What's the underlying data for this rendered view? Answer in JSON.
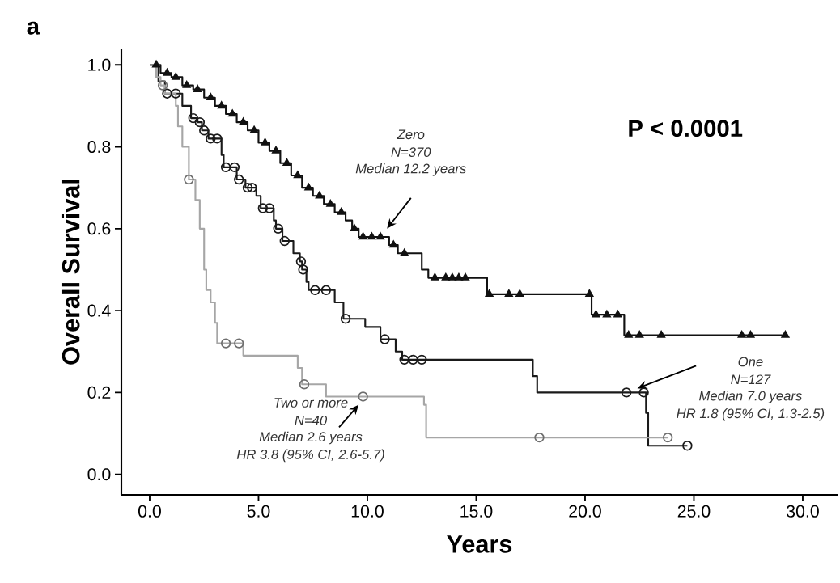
{
  "chart_data": {
    "type": "step",
    "title": "a",
    "xlabel": "Years",
    "ylabel": "Overall Survival",
    "xlim": [
      -1.3,
      31.6
    ],
    "ylim": [
      -0.05,
      1.04
    ],
    "xticks": [
      {
        "value": 0,
        "label": "0.0"
      },
      {
        "value": 5,
        "label": "5.0"
      },
      {
        "value": 10,
        "label": "10.0"
      },
      {
        "value": 15,
        "label": "15.0"
      },
      {
        "value": 20,
        "label": "20.0"
      },
      {
        "value": 25,
        "label": "25.0"
      },
      {
        "value": 30,
        "label": "30.0"
      }
    ],
    "yticks": [
      {
        "value": 0,
        "label": "0.0"
      },
      {
        "value": 0.2,
        "label": "0.2"
      },
      {
        "value": 0.4,
        "label": "0.4"
      },
      {
        "value": 0.6,
        "label": "0.6"
      },
      {
        "value": 0.8,
        "label": "0.8"
      },
      {
        "value": 1,
        "label": "1.0"
      }
    ],
    "series": [
      {
        "color": "#111111",
        "x": [
          0,
          0.5,
          1,
          1.5,
          2,
          2.5,
          3,
          3.5,
          4,
          4.5,
          5,
          5.5,
          6,
          6.5,
          7,
          7.5,
          8,
          8.5,
          9,
          9.3,
          9.6,
          11,
          11.4,
          12.5,
          12.8,
          15.5,
          20.3,
          21.8,
          29.2
        ],
        "values": [
          1.0,
          0.98,
          0.97,
          0.95,
          0.94,
          0.92,
          0.9,
          0.88,
          0.86,
          0.84,
          0.81,
          0.79,
          0.76,
          0.73,
          0.7,
          0.68,
          0.66,
          0.64,
          0.62,
          0.6,
          0.58,
          0.56,
          0.54,
          0.5,
          0.48,
          0.44,
          0.39,
          0.34,
          0.34
        ]
      },
      {
        "color": "#1a1a1a",
        "x": [
          0,
          0.4,
          0.7,
          1.5,
          1.9,
          2.2,
          2.4,
          2.7,
          3.3,
          3.4,
          4.0,
          4.4,
          4.9,
          5.1,
          5.7,
          5.8,
          6.1,
          6.6,
          6.9,
          7.0,
          7.2,
          7.3,
          8.5,
          8.9,
          9.9,
          10.6,
          11.3,
          11.6,
          17.6,
          17.8,
          22.8,
          22.9,
          24.7
        ],
        "values": [
          1.0,
          0.96,
          0.93,
          0.9,
          0.87,
          0.86,
          0.84,
          0.82,
          0.78,
          0.75,
          0.72,
          0.7,
          0.68,
          0.65,
          0.62,
          0.6,
          0.57,
          0.54,
          0.52,
          0.5,
          0.47,
          0.45,
          0.42,
          0.38,
          0.36,
          0.33,
          0.3,
          0.28,
          0.24,
          0.2,
          0.15,
          0.07,
          0.07
        ]
      },
      {
        "color": "#a6a6a6",
        "x": [
          0,
          0.3,
          0.5,
          0.7,
          1.2,
          1.3,
          1.5,
          1.8,
          2.1,
          2.3,
          2.5,
          2.6,
          2.8,
          3.0,
          3.1,
          4.3,
          6.8,
          7.0,
          8.1,
          12.6,
          12.7,
          23.8
        ],
        "values": [
          1.0,
          0.97,
          0.95,
          0.93,
          0.9,
          0.85,
          0.8,
          0.72,
          0.67,
          0.6,
          0.5,
          0.45,
          0.42,
          0.37,
          0.32,
          0.29,
          0.26,
          0.22,
          0.19,
          0.17,
          0.09,
          0.09
        ]
      },
      {
        "type": "scatter",
        "marker": "triangle",
        "color": "#111111",
        "x": [
          0.3,
          0.8,
          1.2,
          1.7,
          2.2,
          2.8,
          3.3,
          3.8,
          4.3,
          4.8,
          5.3,
          5.8,
          6.3,
          6.8,
          7.3,
          7.8,
          8.3,
          8.8,
          9.4,
          9.8,
          10.2,
          10.6,
          11.2,
          11.7,
          13.1,
          13.6,
          13.9,
          14.2,
          14.5,
          15.6,
          16.5,
          17,
          20.2,
          20.5,
          21,
          21.5,
          22,
          22.5,
          23.5,
          27.2,
          27.6,
          29.2
        ],
        "values": [
          1.0,
          0.98,
          0.97,
          0.95,
          0.94,
          0.92,
          0.9,
          0.88,
          0.86,
          0.84,
          0.81,
          0.79,
          0.76,
          0.73,
          0.7,
          0.68,
          0.66,
          0.64,
          0.6,
          0.58,
          0.58,
          0.58,
          0.56,
          0.54,
          0.48,
          0.48,
          0.48,
          0.48,
          0.48,
          0.44,
          0.44,
          0.44,
          0.44,
          0.39,
          0.39,
          0.39,
          0.34,
          0.34,
          0.34,
          0.34,
          0.34,
          0.34
        ]
      },
      {
        "type": "scatter",
        "marker": "circle",
        "color": "#1a1a1a",
        "x": [
          0.8,
          1.2,
          2.0,
          2.3,
          2.5,
          2.8,
          3.1,
          3.5,
          3.9,
          4.1,
          4.5,
          4.7,
          5.2,
          5.5,
          5.9,
          6.2,
          6.95,
          7.05,
          7.6,
          8.1,
          9.0,
          10.8,
          11.7,
          12.1,
          12.5,
          21.9,
          22.7,
          24.7
        ],
        "values": [
          0.93,
          0.93,
          0.87,
          0.86,
          0.84,
          0.82,
          0.82,
          0.75,
          0.75,
          0.72,
          0.7,
          0.7,
          0.65,
          0.65,
          0.6,
          0.57,
          0.52,
          0.5,
          0.45,
          0.45,
          0.38,
          0.33,
          0.28,
          0.28,
          0.28,
          0.2,
          0.2,
          0.07
        ]
      },
      {
        "type": "scatter",
        "marker": "circle",
        "color": "#6e6e6e",
        "x": [
          0.6,
          1.8,
          3.5,
          4.1,
          7.1,
          9.8,
          17.9,
          23.8
        ],
        "values": [
          0.95,
          0.72,
          0.32,
          0.32,
          0.22,
          0.19,
          0.09,
          0.09
        ]
      }
    ],
    "annotations": [
      "P < 0.0001",
      "Zero",
      "N=370",
      "Median 12.2 years",
      "One",
      "N=127",
      "Median 7.0 years",
      "HR 1.8 (95% CI, 1.3-2.5)",
      "Two or more",
      "N=40",
      "Median 2.6 years",
      "HR 3.8 (95% CI, 2.6-5.7)"
    ]
  }
}
